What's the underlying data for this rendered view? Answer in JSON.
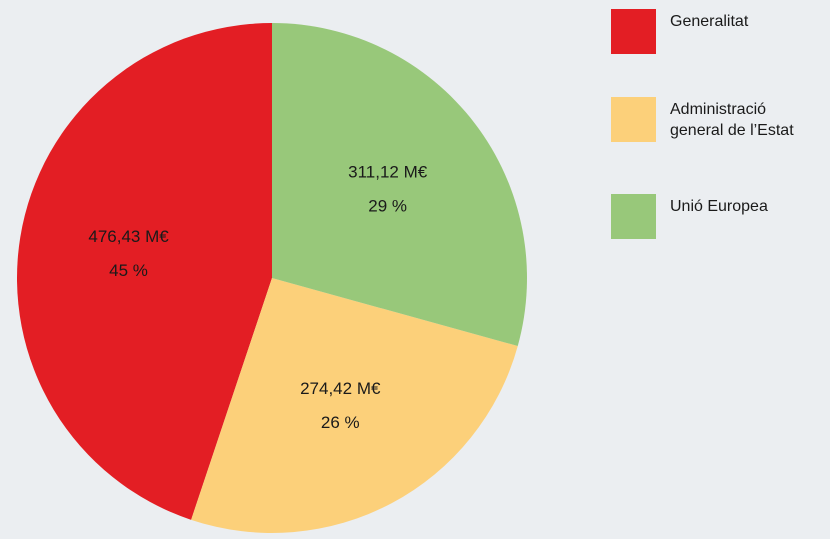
{
  "chart_data": {
    "type": "pie",
    "categories": [
      "Generalitat",
      "Administració general de l’Estat",
      "Unió Europea"
    ],
    "values": [
      476.43,
      274.42,
      311.12
    ],
    "value_labels": [
      "476,43 M€",
      "274,42 M€",
      "311,12 M€"
    ],
    "percentages": [
      45,
      26,
      29
    ],
    "percent_labels": [
      "45 %",
      "26 %",
      "29 %"
    ],
    "colors": [
      "#e31e24",
      "#fcd07a",
      "#98c87a"
    ]
  }
}
